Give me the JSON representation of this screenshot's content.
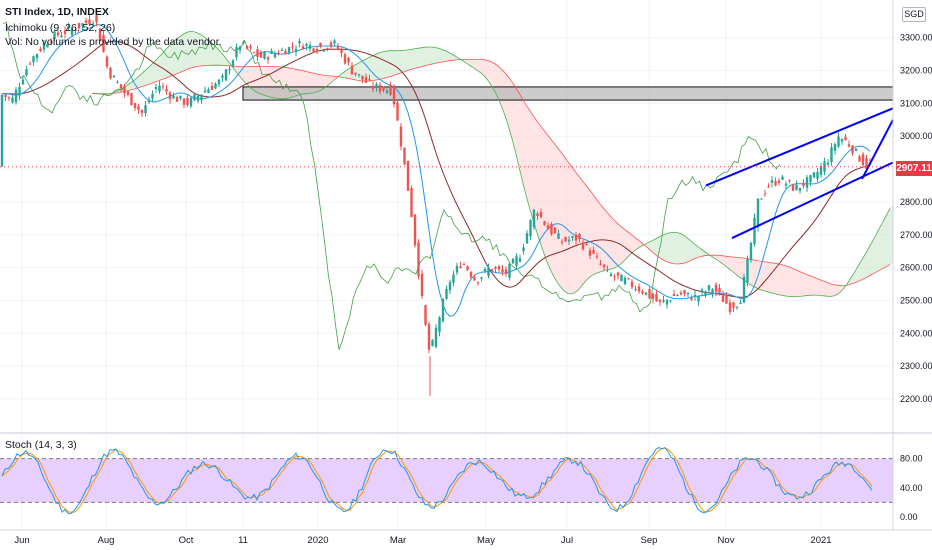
{
  "legend": {
    "title": "STI Index, 1D, INDEX",
    "ichimoku": "Ichimoku (9, 26, 52, 26)",
    "volume": "Vol: No volume is provided by the data vendor.",
    "stoch": "Stoch (14, 3, 3)",
    "currency": "SGD"
  },
  "last_price": "2907.11",
  "colors": {
    "up": "#26a69a",
    "down": "#ef5350",
    "tenkan": "#2196f3",
    "kijun": "#8d2b2b",
    "chikou": "#43a047",
    "span_a": "#4caf50",
    "span_b": "#ff5252",
    "cloud_bull": "#c8e6c9",
    "cloud_bear": "#ffcdd2",
    "trend": "#0000ff",
    "resistance_box": "#b0b0b0",
    "stoch_k": "#2196f3",
    "stoch_d": "#ff9800",
    "stoch_band": "#e1c4ff",
    "last_price": "#f23645"
  },
  "chart_data": [
    {
      "type": "candlestick",
      "title": "STI Index, 1D, INDEX",
      "x_ticks": [
        "Jun",
        "Aug",
        "Oct",
        "11",
        "2020",
        "Mar",
        "May",
        "Jul",
        "Sep",
        "Nov",
        "2021"
      ],
      "y_ticks": [
        "2200.00",
        "2300.00",
        "2400.00",
        "2500.00",
        "2600.00",
        "2700.00",
        "2800.00",
        "2900.00",
        "3000.00",
        "3100.00",
        "3200.00",
        "3300.00"
      ],
      "ylim": [
        2180,
        3410
      ],
      "last_value": 2907.11,
      "key_points": [
        {
          "date": "Jun 2019",
          "close": 3110
        },
        {
          "date": "Jul 2019",
          "close": 3360
        },
        {
          "date": "Aug 2019",
          "close": 3120
        },
        {
          "date": "Oct 2019",
          "close": 3130
        },
        {
          "date": "Nov 2019",
          "close": 3270
        },
        {
          "date": "Jan 2020",
          "close": 3260
        },
        {
          "date": "Feb 2020",
          "close": 3160
        },
        {
          "date": "Mar 2020",
          "close": 2500
        },
        {
          "date": "Mar 23 2020",
          "low": 2210
        },
        {
          "date": "Apr 2020",
          "close": 2600
        },
        {
          "date": "Jun 2020",
          "close": 2800
        },
        {
          "date": "Jul 2020",
          "close": 2620
        },
        {
          "date": "Sep 2020",
          "close": 2480
        },
        {
          "date": "Oct 30 2020",
          "close": 2440
        },
        {
          "date": "Nov 2020",
          "close": 2850
        },
        {
          "date": "Jan 2021",
          "close": 3010
        },
        {
          "date": "Jan 2021 end",
          "close": 2907.11
        }
      ],
      "resistance_zone": [
        3110,
        3150
      ],
      "overlays": [
        "Ichimoku (9, 26, 52, 26)",
        "rising channel trendlines"
      ]
    },
    {
      "type": "line",
      "title": "Stoch (14, 3, 3)",
      "y_ticks": [
        "0.00",
        "40.00",
        "80.00"
      ],
      "ylim": [
        0,
        100
      ],
      "bands": [
        20,
        80
      ],
      "series": [
        {
          "name": "%K",
          "range": [
            5,
            95
          ]
        },
        {
          "name": "%D",
          "range": [
            5,
            95
          ]
        }
      ]
    }
  ]
}
